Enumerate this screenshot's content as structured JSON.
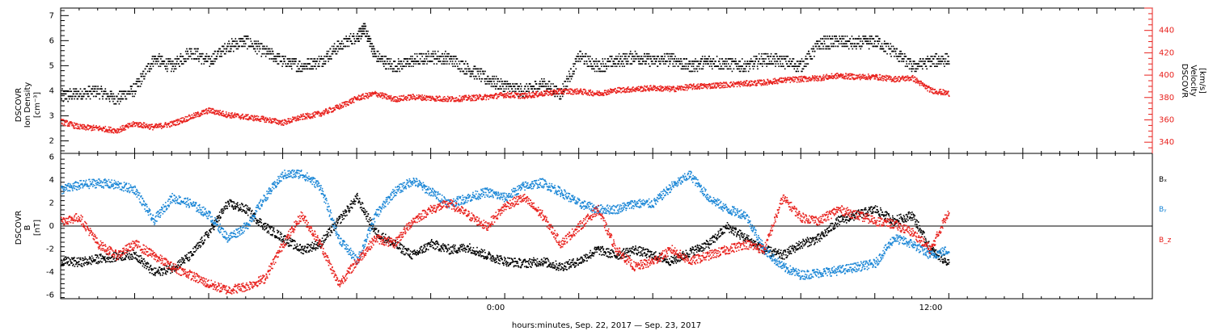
{
  "colors": {
    "black": "#000000",
    "red": "#e8201c",
    "blue": "#1a86d6"
  },
  "chart_data": [
    {
      "type": "scatter",
      "panel": "top",
      "left_ylabel": [
        "DSCOVR",
        "Ion Density",
        "[cm⁻³]"
      ],
      "right_ylabel": [
        "DSCOVR",
        "Velocity",
        "[km/s]"
      ],
      "left_ylim": [
        1.5,
        7.3
      ],
      "right_ylim": [
        330,
        460
      ],
      "left_ticks": [
        "2",
        "3",
        "4",
        "5",
        "6",
        "7"
      ],
      "right_ticks": [
        "340",
        "360",
        "380",
        "400",
        "420",
        "440"
      ],
      "xlim": [
        -12,
        17.5
      ],
      "series": [
        {
          "axis": "left",
          "color": "black",
          "x": [
            -12,
            -11.5,
            -11.0,
            -10.5,
            -10.0,
            -9.5,
            -9.0,
            -8.5,
            -8.0,
            -7.5,
            -7.0,
            -6.5,
            -6.0,
            -5.5,
            -5.0,
            -4.5,
            -4.0,
            -3.8,
            -3.5,
            -3.0,
            -2.5,
            -2.0,
            -1.5,
            -1.0,
            -0.5,
            0.0,
            0.5,
            1.0,
            1.5,
            2.0,
            2.5,
            3.0,
            3.5,
            4.0,
            4.5,
            5.0,
            5.5,
            6.0,
            6.5,
            7.0,
            7.5,
            8.0,
            8.5,
            9.0,
            9.5,
            10.0,
            10.5,
            11.0,
            11.5,
            12.0
          ],
          "y": [
            3.8,
            3.9,
            4.0,
            3.7,
            4.1,
            5.3,
            5.0,
            5.6,
            5.2,
            5.8,
            6.0,
            5.6,
            5.2,
            5.0,
            5.2,
            5.8,
            6.2,
            6.5,
            5.4,
            5.0,
            5.2,
            5.4,
            5.3,
            4.9,
            4.5,
            4.2,
            4.0,
            4.3,
            3.9,
            5.4,
            5.0,
            5.2,
            5.4,
            5.2,
            5.3,
            5.0,
            5.2,
            5.1,
            5.0,
            5.3,
            5.2,
            5.0,
            5.9,
            6.0,
            5.9,
            6.0,
            5.6,
            5.0,
            5.2,
            5.3
          ]
        },
        {
          "axis": "right",
          "color": "red",
          "x": [
            -12,
            -11.5,
            -11.0,
            -10.5,
            -10.0,
            -9.5,
            -9.0,
            -8.5,
            -8.0,
            -7.5,
            -7.0,
            -6.5,
            -6.0,
            -5.5,
            -5.0,
            -4.5,
            -4.0,
            -3.5,
            -3.0,
            -2.5,
            -2.0,
            -1.5,
            -1.0,
            -0.5,
            0.0,
            0.5,
            1.0,
            1.5,
            2.0,
            2.5,
            3.0,
            3.5,
            4.0,
            4.5,
            5.0,
            5.5,
            6.0,
            6.5,
            7.0,
            7.5,
            8.0,
            8.5,
            9.0,
            9.5,
            10.0,
            10.5,
            11.0,
            11.5,
            12.0
          ],
          "y": [
            359,
            354,
            353,
            351,
            357,
            354,
            357,
            363,
            369,
            365,
            363,
            361,
            358,
            363,
            366,
            372,
            380,
            384,
            379,
            381,
            380,
            379,
            380,
            381,
            383,
            382,
            384,
            386,
            386,
            384,
            387,
            388,
            389,
            388,
            390,
            391,
            392,
            393,
            394,
            396,
            397,
            398,
            400,
            399,
            399,
            397,
            398,
            387,
            384
          ]
        }
      ]
    },
    {
      "type": "scatter",
      "panel": "bottom",
      "left_ylabel": [
        "DSCOVR",
        "B",
        "[nT]"
      ],
      "ylim": [
        -6.3,
        6.3
      ],
      "ticks": [
        "-6",
        "-4",
        "-2",
        "0",
        "2",
        "4",
        "6"
      ],
      "xlim": [
        -12,
        17.5
      ],
      "legend": [
        "Bₓ",
        "Bᵧ",
        "B_z"
      ],
      "series": [
        {
          "name": "Bx",
          "color": "black",
          "x": [
            -12,
            -11.5,
            -11.0,
            -10.5,
            -10.0,
            -9.5,
            -9.0,
            -8.5,
            -8.0,
            -7.5,
            -7.0,
            -6.5,
            -6.0,
            -5.5,
            -5.0,
            -4.5,
            -4.0,
            -3.5,
            -3.0,
            -2.5,
            -2.0,
            -1.5,
            -1.0,
            -0.5,
            0.0,
            0.5,
            1.0,
            1.5,
            2.0,
            2.5,
            3.0,
            3.5,
            4.0,
            4.5,
            5.0,
            5.5,
            6.0,
            6.5,
            7.0,
            7.5,
            8.0,
            8.5,
            9.0,
            9.5,
            10.0,
            10.5,
            11.0,
            11.5,
            12.0
          ],
          "y": [
            -3.0,
            -3.1,
            -2.8,
            -2.6,
            -2.4,
            -4.0,
            -3.6,
            -2.5,
            -0.5,
            2.0,
            1.5,
            0.0,
            -1.0,
            -2.0,
            -1.5,
            0.5,
            2.5,
            -0.5,
            -1.5,
            -2.5,
            -1.5,
            -2.0,
            -1.8,
            -2.5,
            -3.0,
            -3.2,
            -3.0,
            -3.5,
            -3.0,
            -2.0,
            -2.5,
            -2.0,
            -2.5,
            -3.0,
            -2.2,
            -1.5,
            0.0,
            -1.0,
            -2.0,
            -2.5,
            -1.5,
            -1.0,
            0.5,
            1.0,
            1.5,
            0.5,
            1.0,
            -2.0,
            -3.2
          ]
        },
        {
          "name": "By",
          "color": "blue",
          "x": [
            -12,
            -11.5,
            -11.0,
            -10.5,
            -10.0,
            -9.5,
            -9.0,
            -8.5,
            -8.0,
            -7.5,
            -7.0,
            -6.5,
            -6.0,
            -5.5,
            -5.0,
            -4.5,
            -4.0,
            -3.5,
            -3.0,
            -2.5,
            -2.0,
            -1.5,
            -1.0,
            -0.5,
            0.0,
            0.5,
            1.0,
            1.5,
            2.0,
            2.5,
            3.0,
            3.5,
            4.0,
            4.5,
            5.0,
            5.5,
            6.0,
            6.5,
            7.0,
            7.5,
            8.0,
            8.5,
            9.0,
            9.5,
            10.0,
            10.5,
            11.0,
            11.5,
            12.0
          ],
          "y": [
            3.2,
            3.6,
            3.8,
            3.6,
            3.2,
            0.5,
            2.5,
            2.0,
            1.0,
            -1.0,
            0.0,
            2.5,
            4.5,
            4.6,
            3.5,
            -1.0,
            -3.0,
            1.0,
            3.0,
            4.0,
            3.0,
            2.0,
            2.5,
            3.0,
            2.5,
            3.5,
            3.8,
            3.0,
            2.0,
            1.5,
            1.5,
            2.0,
            2.0,
            3.5,
            4.5,
            2.5,
            1.5,
            1.0,
            -2.0,
            -3.5,
            -4.2,
            -4.0,
            -3.8,
            -3.5,
            -3.2,
            -1.0,
            -1.5,
            -2.5,
            -2.0
          ]
        },
        {
          "name": "Bz",
          "color": "red",
          "x": [
            -12,
            -11.5,
            -11.0,
            -10.5,
            -10.0,
            -9.5,
            -9.0,
            -8.5,
            -8.0,
            -7.5,
            -7.0,
            -6.5,
            -6.0,
            -5.5,
            -5.0,
            -4.5,
            -4.0,
            -3.5,
            -3.0,
            -2.5,
            -2.0,
            -1.5,
            -1.0,
            -0.5,
            0.0,
            0.5,
            1.0,
            1.5,
            2.0,
            2.5,
            3.0,
            3.5,
            4.0,
            4.5,
            5.0,
            5.5,
            6.0,
            6.5,
            7.0,
            7.5,
            8.0,
            8.5,
            9.0,
            9.5,
            10.0,
            10.5,
            11.0,
            11.5,
            12.0
          ],
          "y": [
            0.5,
            0.8,
            -1.5,
            -2.5,
            -1.5,
            -2.5,
            -3.5,
            -4.2,
            -5.0,
            -5.5,
            -5.2,
            -4.5,
            -1.5,
            1.0,
            -1.5,
            -5.0,
            -3.0,
            -1.0,
            -1.5,
            0.5,
            1.5,
            2.0,
            1.0,
            0.0,
            1.8,
            2.5,
            1.0,
            -1.5,
            0.0,
            1.5,
            -2.0,
            -3.5,
            -3.0,
            -2.0,
            -3.0,
            -2.5,
            -2.0,
            -1.5,
            -2.0,
            2.5,
            0.8,
            0.5,
            1.5,
            1.0,
            0.5,
            0.2,
            -0.5,
            -2.0,
            1.5
          ]
        }
      ]
    }
  ],
  "x_axis": {
    "tick_labels": [
      {
        "x": 0,
        "label": "0:00"
      },
      {
        "x": 12,
        "label": "12:00"
      }
    ],
    "title": "hours:minutes, Sep. 22, 2017 — Sep. 23, 2017"
  }
}
